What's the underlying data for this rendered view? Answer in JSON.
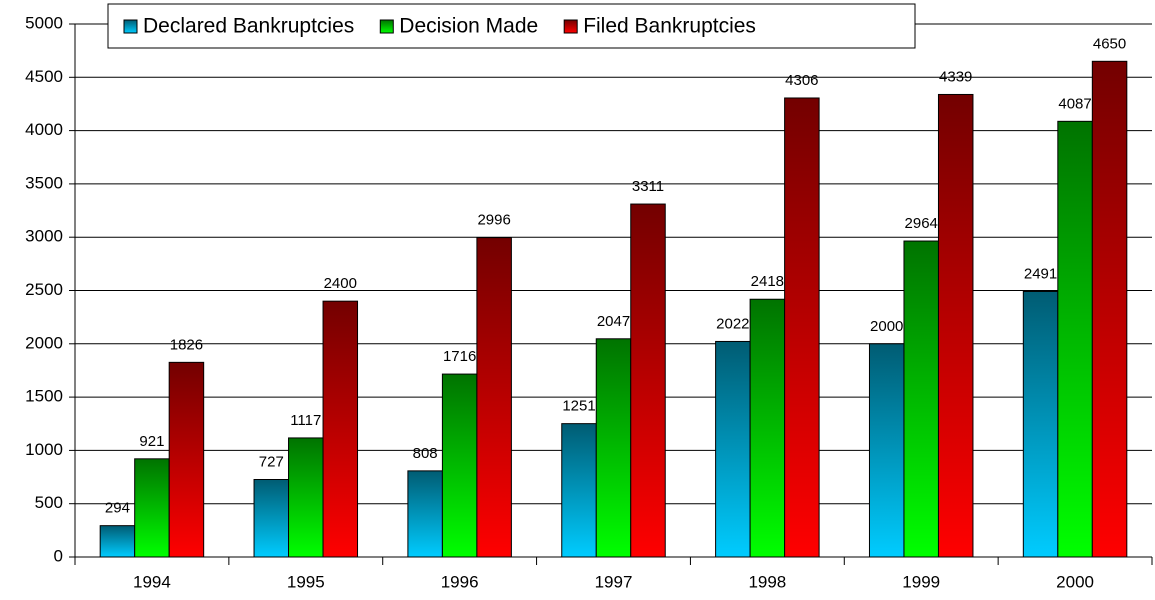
{
  "chart_data": {
    "type": "bar",
    "categories": [
      "1994",
      "1995",
      "1996",
      "1997",
      "1998",
      "1999",
      "2000"
    ],
    "series": [
      {
        "name": "Declared Bankruptcies",
        "color": "#00ccff",
        "values": [
          294,
          727,
          808,
          1251,
          2022,
          2000,
          2491
        ]
      },
      {
        "name": "Decision Made",
        "color": "#00ff00",
        "values": [
          921,
          1117,
          1716,
          2047,
          2418,
          2964,
          4087
        ]
      },
      {
        "name": "Filed Bankruptcies",
        "color": "#ff0000",
        "values": [
          1826,
          2400,
          2996,
          3311,
          4306,
          4339,
          4650
        ]
      }
    ],
    "ylim": [
      0,
      5000
    ],
    "yticks": [
      0,
      500,
      1000,
      1500,
      2000,
      2500,
      3000,
      3500,
      4000,
      4500,
      5000
    ],
    "grid": true,
    "legend": "top"
  }
}
